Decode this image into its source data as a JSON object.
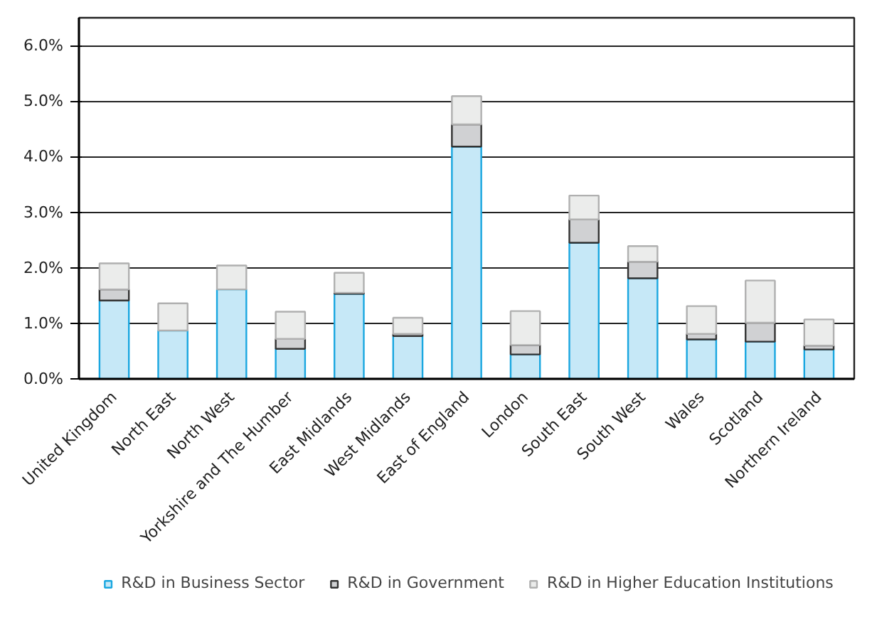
{
  "chart_data": {
    "type": "bar",
    "stacked": true,
    "categories": [
      "United Kingdom",
      "North East",
      "North West",
      "Yorkshire and The Humber",
      "East Midlands",
      "West Midlands",
      "East of England",
      "London",
      "South East",
      "South West",
      "Wales",
      "Scotland",
      "Northern Ireland"
    ],
    "series": [
      {
        "name": "R&D in Business Sector",
        "color": "#c6e8f7",
        "values": [
          1.41,
          0.87,
          1.61,
          0.54,
          1.53,
          0.77,
          4.18,
          0.44,
          2.45,
          1.81,
          0.71,
          0.67,
          0.53
        ]
      },
      {
        "name": "R&D in Government",
        "color": "#d0d1d3",
        "values": [
          0.2,
          null,
          null,
          0.18,
          0.02,
          0.04,
          0.4,
          0.17,
          0.42,
          0.3,
          0.1,
          0.34,
          0.07
        ]
      },
      {
        "name": "R&D in Higher Education Institutions",
        "color": "#ebeceb",
        "values": [
          0.47,
          0.49,
          0.43,
          0.49,
          0.36,
          0.29,
          0.51,
          0.61,
          0.43,
          0.28,
          0.5,
          0.76,
          0.47
        ]
      }
    ],
    "ylim": [
      0,
      6.5
    ],
    "yticks": [
      {
        "value": 0,
        "label": "0.0%"
      },
      {
        "value": 1,
        "label": "1.0%"
      },
      {
        "value": 2,
        "label": "2.0%"
      },
      {
        "value": 3,
        "label": "3.0%"
      },
      {
        "value": 4,
        "label": "4.0%"
      },
      {
        "value": 5,
        "label": "5.0%"
      },
      {
        "value": 6,
        "label": "6.0%"
      }
    ],
    "grid": "y",
    "legend": "bottom"
  }
}
